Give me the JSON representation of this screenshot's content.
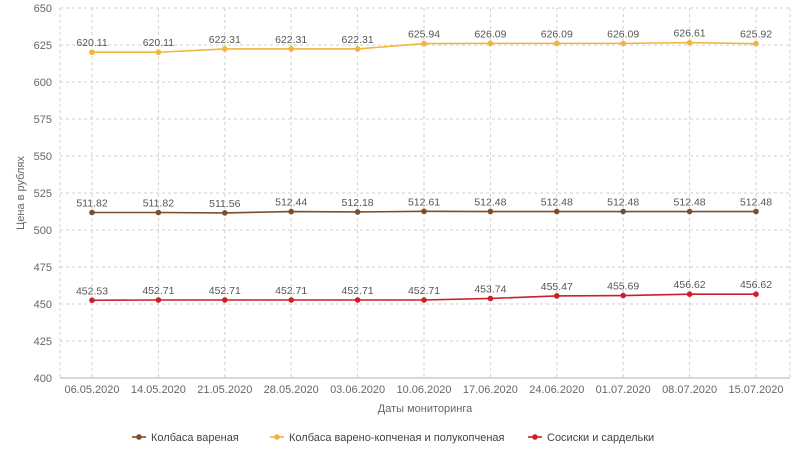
{
  "chart_data": {
    "type": "line",
    "title": "",
    "xlabel": "Даты мониторинга",
    "ylabel": "Цена в рублях",
    "ylim": [
      400,
      650
    ],
    "yticks": [
      400,
      425,
      450,
      475,
      500,
      525,
      550,
      575,
      600,
      625,
      650
    ],
    "grid": true,
    "legend_position": "bottom",
    "categories": [
      "06.05.2020",
      "14.05.2020",
      "21.05.2020",
      "28.05.2020",
      "03.06.2020",
      "10.06.2020",
      "17.06.2020",
      "24.06.2020",
      "01.07.2020",
      "08.07.2020",
      "15.07.2020"
    ],
    "series": [
      {
        "name": "Колбаса вареная",
        "color": "#7b4f2e",
        "values": [
          511.82,
          511.82,
          511.56,
          512.44,
          512.18,
          512.61,
          512.48,
          512.48,
          512.48,
          512.48,
          512.48
        ],
        "labels": [
          "511.82",
          "511.82",
          "511.56",
          "512.44",
          "512.18",
          "512.61",
          "512.48",
          "512.48",
          "512.48",
          "512.48",
          "512.48"
        ]
      },
      {
        "name": "Колбаса варено-копченая и полукопченая",
        "color": "#f2b43b",
        "values": [
          620.11,
          620.11,
          622.31,
          622.31,
          622.31,
          625.94,
          626.09,
          626.09,
          626.09,
          626.61,
          625.92
        ],
        "labels": [
          "620.11",
          "620.11",
          "622.31",
          "622.31",
          "622.31",
          "625.94",
          "626.09",
          "626.09",
          "626.09",
          "626.61",
          "625.92"
        ]
      },
      {
        "name": "Сосиски и сардельки",
        "color": "#cc1f2b",
        "values": [
          452.53,
          452.71,
          452.71,
          452.71,
          452.71,
          452.71,
          453.74,
          455.47,
          455.69,
          456.62,
          456.62
        ],
        "labels": [
          "452.53",
          "452.71",
          "452.71",
          "452.71",
          "452.71",
          "452.71",
          "453.74",
          "455.47",
          "455.69",
          "456.62",
          "456.62"
        ]
      }
    ]
  }
}
